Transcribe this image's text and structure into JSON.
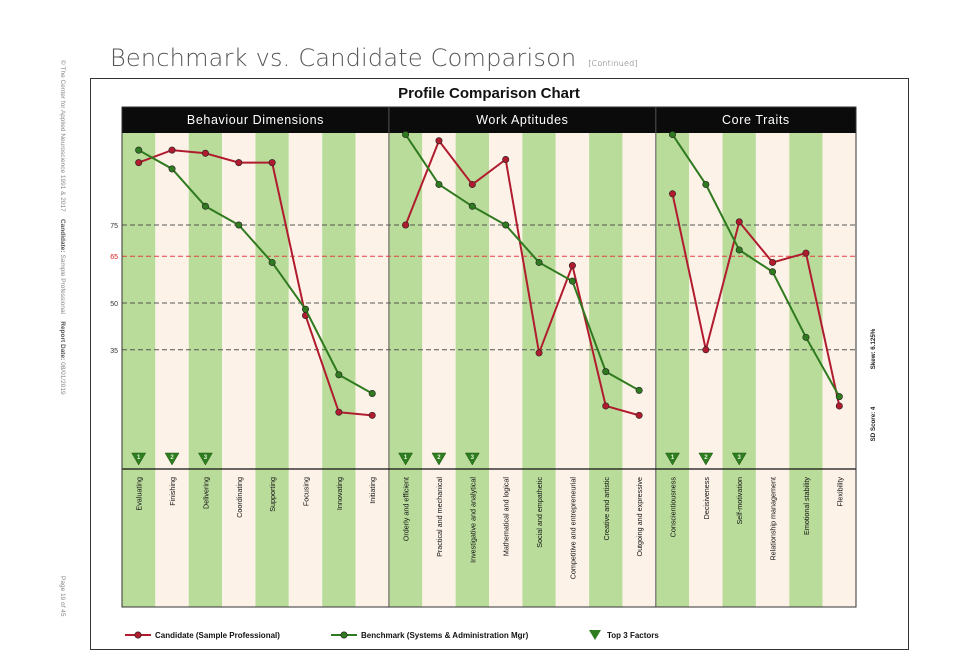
{
  "page": {
    "title": "Benchmark vs. Candidate Comparison",
    "title_suffix": "[Continued]",
    "side_copyright": "© The Center for Applied Neuroscience 1991 & 2017",
    "side_candidate_label": "Candidate:",
    "side_candidate_value": "Sample Professional",
    "side_report_label": "Report Date:",
    "side_report_value": "08/01/2019",
    "side_page": "Page 19 of 45"
  },
  "chart_data": {
    "type": "line",
    "title": "Profile Comparison Chart",
    "groups": [
      {
        "name": "Behaviour Dimensions",
        "count": 8
      },
      {
        "name": "Work Aptitudes",
        "count": 8
      },
      {
        "name": "Core Traits",
        "count": 6
      }
    ],
    "categories": [
      "Evaluating",
      "Finishing",
      "Delivering",
      "Coordinating",
      "Supporting",
      "Focusing",
      "Innovating",
      "Initiating",
      "Orderly and efficient",
      "Practical and mechanical",
      "Investigative and analytical",
      "Mathematical and logical",
      "Social and empathetic",
      "Competitive and entrepreneurial",
      "Creative and artistic",
      "Outgoing and expressive",
      "Conscientiousness",
      "Decisiveness",
      "Self-motivation",
      "Relationship management",
      "Emotional stability",
      "Flexibility"
    ],
    "ylim": [
      0,
      100
    ],
    "yticks": [
      35,
      50,
      65,
      75
    ],
    "reference_line": {
      "value": 65,
      "color": "#e04040"
    },
    "series": [
      {
        "name": "Candidate (Sample Professional)",
        "color": "#b01c2e",
        "values": [
          95,
          99,
          98,
          95,
          95,
          46,
          15,
          14,
          75,
          102,
          88,
          96,
          34,
          62,
          17,
          14,
          85,
          35,
          76,
          63,
          66,
          17
        ]
      },
      {
        "name": "Benchmark (Systems & Administration Mgr)",
        "color": "#2f7a1f",
        "values": [
          99,
          93,
          81,
          75,
          63,
          48,
          27,
          21,
          104,
          88,
          81,
          75,
          63,
          57,
          28,
          22,
          104,
          88,
          67,
          60,
          39,
          20
        ]
      }
    ],
    "top3": [
      {
        "group": "Behaviour Dimensions",
        "items": [
          {
            "index": 0,
            "rank": "1"
          },
          {
            "index": 1,
            "rank": "2"
          },
          {
            "index": 2,
            "rank": "3"
          }
        ]
      },
      {
        "group": "Work Aptitudes",
        "items": [
          {
            "index": 8,
            "rank": "1"
          },
          {
            "index": 9,
            "rank": "2"
          },
          {
            "index": 10,
            "rank": "3"
          }
        ]
      },
      {
        "group": "Core Traits",
        "items": [
          {
            "index": 16,
            "rank": "1"
          },
          {
            "index": 17,
            "rank": "2"
          },
          {
            "index": 18,
            "rank": "3"
          }
        ]
      }
    ],
    "side_stats": {
      "sd_score": "SD Score: 4",
      "skew": "Skew: 6.125%"
    },
    "legend": {
      "candidate": "Candidate (Sample Professional)",
      "benchmark": "Benchmark (Systems & Administration Mgr)",
      "top3": "Top 3 Factors"
    },
    "colors": {
      "band_green": "#b9dc9b",
      "band_cream": "#fdf2e8",
      "header_bg": "#0b0b0b",
      "marker_green": "#2e7d1e"
    },
    "grid": true
  }
}
